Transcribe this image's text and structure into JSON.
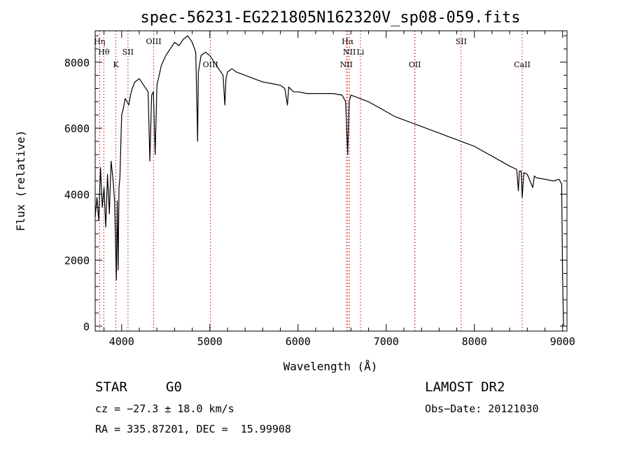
{
  "title": "spec-56231-EG221805N162320V_sp08-059.fits",
  "info": {
    "class_label": "STAR",
    "subclass_label": "G0",
    "velocity": "cz = −27.3 ± 18.0 km/s",
    "coords": "RA = 335.87201, DEC =  15.99908",
    "survey": "LAMOST DR2",
    "obs_date": "Obs−Date: 20121030"
  },
  "chart_data": {
    "type": "line",
    "xlabel": "Wavelength (Å)",
    "ylabel": "Flux (relative)",
    "xlim": [
      3700,
      9050
    ],
    "ylim": [
      -150,
      8950
    ],
    "x_ticks": [
      4000,
      5000,
      6000,
      7000,
      8000,
      9000
    ],
    "y_ticks": [
      0,
      2000,
      4000,
      6000,
      8000
    ],
    "x_tick_labels": [
      "4000",
      "5000",
      "6000",
      "7000",
      "8000",
      "9000"
    ],
    "y_tick_labels": [
      "0",
      "2000",
      "4000",
      "6000",
      "8000"
    ],
    "line_color": "#000000",
    "marker_color": "#cc0000",
    "spectrum": {
      "x": [
        3700,
        3720,
        3740,
        3760,
        3780,
        3800,
        3820,
        3840,
        3860,
        3880,
        3900,
        3920,
        3940,
        3950,
        3960,
        3970,
        3980,
        4000,
        4020,
        4040,
        4060,
        4080,
        4100,
        4120,
        4150,
        4200,
        4250,
        4300,
        4320,
        4340,
        4360,
        4380,
        4400,
        4450,
        4500,
        4550,
        4600,
        4650,
        4700,
        4750,
        4800,
        4840,
        4855,
        4861,
        4870,
        4900,
        4950,
        5000,
        5050,
        5100,
        5150,
        5170,
        5183,
        5200,
        5250,
        5300,
        5400,
        5500,
        5600,
        5700,
        5800,
        5850,
        5880,
        5895,
        5910,
        5950,
        6000,
        6100,
        6200,
        6300,
        6400,
        6500,
        6540,
        6563,
        6580,
        6600,
        6700,
        6800,
        6900,
        7000,
        7100,
        7200,
        7300,
        7400,
        7500,
        7600,
        7700,
        7800,
        7900,
        8000,
        8100,
        8200,
        8300,
        8400,
        8480,
        8498,
        8510,
        8530,
        8542,
        8560,
        8600,
        8662,
        8680,
        8700,
        8800,
        8900,
        8960,
        8990,
        9000,
        9010
      ],
      "y": [
        3300,
        3900,
        3200,
        4800,
        3600,
        4200,
        3000,
        4600,
        3400,
        5000,
        4500,
        3800,
        1400,
        3800,
        1700,
        4200,
        4500,
        6400,
        6600,
        6900,
        6800,
        6700,
        7000,
        7200,
        7400,
        7500,
        7300,
        7100,
        5000,
        7000,
        7100,
        5200,
        7300,
        7900,
        8200,
        8400,
        8600,
        8500,
        8700,
        8800,
        8600,
        8300,
        6500,
        5600,
        7700,
        8200,
        8300,
        8200,
        8000,
        7800,
        7600,
        6700,
        7500,
        7700,
        7800,
        7700,
        7600,
        7500,
        7400,
        7350,
        7300,
        7200,
        6700,
        7250,
        7200,
        7100,
        7100,
        7050,
        7050,
        7050,
        7050,
        7000,
        6800,
        5200,
        6800,
        7000,
        6900,
        6800,
        6650,
        6500,
        6350,
        6250,
        6150,
        6050,
        5950,
        5850,
        5750,
        5650,
        5550,
        5450,
        5300,
        5150,
        5000,
        4850,
        4750,
        4100,
        4700,
        4700,
        3900,
        4650,
        4600,
        4200,
        4550,
        4500,
        4450,
        4400,
        4450,
        4300,
        1500,
        0
      ]
    },
    "line_markers": [
      {
        "wavelength": 3750,
        "label": "Hη",
        "row": 1
      },
      {
        "wavelength": 3798,
        "label": "Hθ",
        "row": 2
      },
      {
        "wavelength": 3934,
        "label": "K",
        "row": 3
      },
      {
        "wavelength": 4072,
        "label": "SII",
        "row": 2
      },
      {
        "wavelength": 4363,
        "label": "OIII",
        "row": 1
      },
      {
        "wavelength": 5007,
        "label": "OIII",
        "row": 3
      },
      {
        "wavelength": 6563,
        "label": "Hα",
        "row": 1
      },
      {
        "wavelength": 6583,
        "label": "NII",
        "row": 2
      },
      {
        "wavelength": 6548,
        "label": "NII",
        "row": 3
      },
      {
        "wavelength": 6708,
        "label": "Li",
        "row": 2
      },
      {
        "wavelength": 7325,
        "label": "OII",
        "row": 3
      },
      {
        "wavelength": 7325,
        "label": "",
        "row": 0
      },
      {
        "wavelength": 7850,
        "label": "SII",
        "row": 1
      },
      {
        "wavelength": 8542,
        "label": "CaII",
        "row": 3
      }
    ]
  }
}
